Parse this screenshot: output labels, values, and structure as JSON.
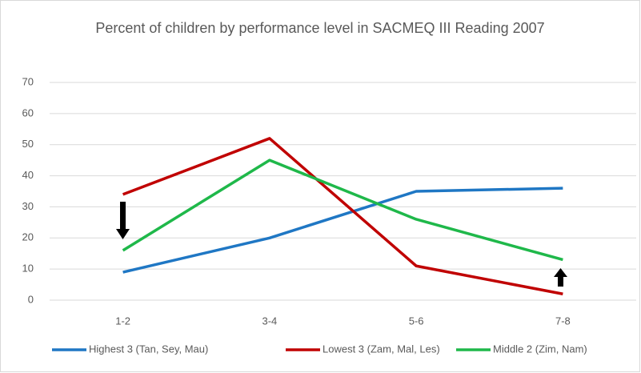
{
  "chart_data": {
    "type": "line",
    "title": "Percent of children by performance level in SACMEQ III Reading 2007",
    "categories": [
      "1-2",
      "3-4",
      "5-6",
      "7-8"
    ],
    "series": [
      {
        "name": "Highest 3 (Tan, Sey, Mau)",
        "color": "#1f77c4",
        "values": [
          9,
          20,
          35,
          36
        ]
      },
      {
        "name": "Lowest 3 (Zam, Mal, Les)",
        "color": "#c00000",
        "values": [
          34,
          52,
          11,
          2
        ]
      },
      {
        "name": "Middle 2 (Zim, Nam)",
        "color": "#1fb84a",
        "values": [
          16,
          45,
          26,
          13
        ]
      }
    ],
    "ylim": [
      0,
      70
    ],
    "yticks": [
      0,
      10,
      20,
      30,
      40,
      50,
      60,
      70
    ],
    "grid": true,
    "legend": "bottom"
  }
}
